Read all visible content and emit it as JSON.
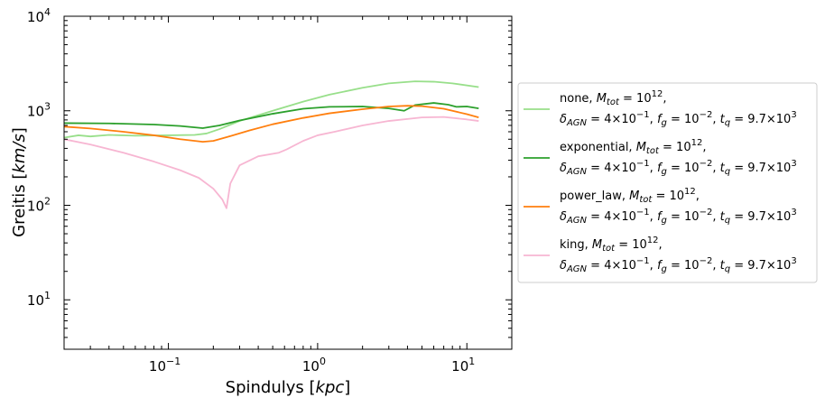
{
  "chart_data": {
    "type": "line",
    "xlabel_text": "Spindulys",
    "xlabel_unit": "kpc",
    "ylabel_text": "Greitis",
    "ylabel_unit": "km/s",
    "xscale": "log",
    "yscale": "log",
    "xlim": [
      0.02,
      20
    ],
    "ylim": [
      3,
      10000
    ],
    "x_ticks": [
      {
        "value": 0.1,
        "base": "10",
        "exp": "−1"
      },
      {
        "value": 1,
        "base": "10",
        "exp": "0"
      },
      {
        "value": 10,
        "base": "10",
        "exp": "1"
      }
    ],
    "y_ticks": [
      {
        "value": 10,
        "base": "10",
        "exp": "1"
      },
      {
        "value": 100,
        "base": "10",
        "exp": "2"
      },
      {
        "value": 1000,
        "base": "10",
        "exp": "3"
      },
      {
        "value": 10000,
        "base": "10",
        "exp": "4"
      }
    ],
    "legend_placement": "right, outside",
    "series": [
      {
        "name": "none",
        "color": "#98df8a",
        "legend": {
          "line1_prefix": "none, ",
          "mtot_exp": "12",
          "delta_mant": "4",
          "delta_exp": "−1",
          "fg_exp": "−2",
          "tq_mant": "9.7",
          "tq_exp": "3"
        },
        "points": [
          [
            0.02,
            520
          ],
          [
            0.025,
            550
          ],
          [
            0.03,
            535
          ],
          [
            0.04,
            555
          ],
          [
            0.06,
            545
          ],
          [
            0.1,
            550
          ],
          [
            0.15,
            555
          ],
          [
            0.18,
            575
          ],
          [
            0.22,
            640
          ],
          [
            0.3,
            780
          ],
          [
            0.5,
            1000
          ],
          [
            0.8,
            1250
          ],
          [
            1.2,
            1480
          ],
          [
            2,
            1750
          ],
          [
            3,
            1950
          ],
          [
            4.5,
            2050
          ],
          [
            6,
            2030
          ],
          [
            8,
            1950
          ],
          [
            12,
            1780
          ]
        ]
      },
      {
        "name": "exponential",
        "color": "#2ca02c",
        "legend": {
          "line1_prefix": "exponential, ",
          "mtot_exp": "12",
          "delta_mant": "4",
          "delta_exp": "−1",
          "fg_exp": "−2",
          "tq_mant": "9.7",
          "tq_exp": "3"
        },
        "points": [
          [
            0.02,
            740
          ],
          [
            0.04,
            735
          ],
          [
            0.08,
            715
          ],
          [
            0.12,
            690
          ],
          [
            0.17,
            655
          ],
          [
            0.22,
            700
          ],
          [
            0.3,
            790
          ],
          [
            0.5,
            930
          ],
          [
            0.8,
            1050
          ],
          [
            1.2,
            1100
          ],
          [
            2,
            1110
          ],
          [
            3,
            1060
          ],
          [
            3.8,
            1000
          ],
          [
            4.5,
            1150
          ],
          [
            6,
            1210
          ],
          [
            7.5,
            1160
          ],
          [
            8.5,
            1100
          ],
          [
            10,
            1110
          ],
          [
            12,
            1060
          ]
        ]
      },
      {
        "name": "power_law",
        "color": "#ff7f0e",
        "legend": {
          "line1_prefix": "power_law, ",
          "mtot_exp": "12",
          "delta_mant": "4",
          "delta_exp": "−1",
          "fg_exp": "−2",
          "tq_mant": "9.7",
          "tq_exp": "3"
        },
        "points": [
          [
            0.02,
            680
          ],
          [
            0.03,
            650
          ],
          [
            0.05,
            600
          ],
          [
            0.08,
            550
          ],
          [
            0.12,
            500
          ],
          [
            0.17,
            470
          ],
          [
            0.2,
            480
          ],
          [
            0.25,
            530
          ],
          [
            0.35,
            620
          ],
          [
            0.5,
            720
          ],
          [
            0.8,
            840
          ],
          [
            1.2,
            940
          ],
          [
            2,
            1040
          ],
          [
            3,
            1110
          ],
          [
            4,
            1130
          ],
          [
            5,
            1120
          ],
          [
            7,
            1050
          ],
          [
            10,
            920
          ],
          [
            12,
            850
          ]
        ]
      },
      {
        "name": "king",
        "color": "#f7b6d2",
        "legend": {
          "line1_prefix": "king, ",
          "mtot_exp": "12",
          "delta_mant": "4",
          "delta_exp": "−1",
          "fg_exp": "−2",
          "tq_mant": "9.7",
          "tq_exp": "3"
        },
        "points": [
          [
            0.02,
            500
          ],
          [
            0.03,
            440
          ],
          [
            0.05,
            360
          ],
          [
            0.08,
            290
          ],
          [
            0.12,
            235
          ],
          [
            0.16,
            195
          ],
          [
            0.2,
            150
          ],
          [
            0.23,
            115
          ],
          [
            0.245,
            93
          ],
          [
            0.26,
            170
          ],
          [
            0.3,
            265
          ],
          [
            0.4,
            330
          ],
          [
            0.55,
            360
          ],
          [
            0.62,
            390
          ],
          [
            0.8,
            480
          ],
          [
            1,
            550
          ],
          [
            1.3,
            600
          ],
          [
            2,
            700
          ],
          [
            3,
            780
          ],
          [
            5,
            850
          ],
          [
            7,
            860
          ],
          [
            10,
            810
          ],
          [
            12,
            780
          ]
        ]
      }
    ]
  }
}
